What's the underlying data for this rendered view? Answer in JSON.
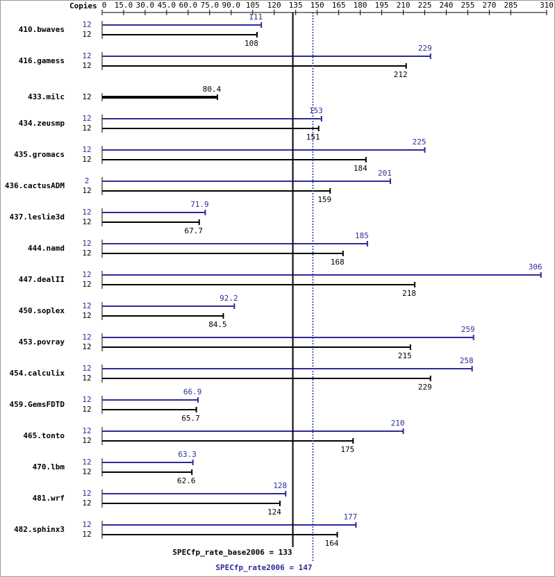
{
  "chart_data": {
    "type": "bar",
    "orientation": "horizontal",
    "copies_header": "Copies",
    "categories": [
      "410.bwaves",
      "416.gamess",
      "433.milc",
      "434.zeusmp",
      "435.gromacs",
      "436.cactusADM",
      "437.leslie3d",
      "444.namd",
      "447.dealII",
      "450.soplex",
      "453.povray",
      "454.calculix",
      "459.GemsFDTD",
      "465.tonto",
      "470.lbm",
      "481.wrf",
      "482.sphinx3"
    ],
    "series": [
      {
        "color": "#2b2b99",
        "copies": [
          12,
          12,
          null,
          12,
          12,
          2,
          12,
          12,
          12,
          12,
          12,
          12,
          12,
          12,
          12,
          12,
          12
        ],
        "values": [
          111,
          229,
          null,
          153,
          225,
          201,
          71.9,
          185,
          306,
          92.2,
          259,
          258,
          66.9,
          210,
          63.3,
          128,
          177
        ]
      },
      {
        "color": "#000000",
        "copies": [
          12,
          12,
          12,
          12,
          12,
          12,
          12,
          12,
          12,
          12,
          12,
          12,
          12,
          12,
          12,
          12,
          12
        ],
        "values": [
          108,
          212,
          80.4,
          151,
          184,
          159,
          67.7,
          168,
          218,
          84.5,
          215,
          229,
          65.7,
          175,
          62.6,
          124,
          164
        ]
      }
    ],
    "reference_lines": [
      {
        "label": "SPECfp_rate_base2006 = 133",
        "value": 133,
        "color": "#000000",
        "style": "solid"
      },
      {
        "label": "SPECfp_rate2006 = 147",
        "value": 147,
        "color": "#2b2b99",
        "style": "dotted"
      }
    ],
    "xlim": [
      0,
      310
    ],
    "xticks": [
      0,
      {
        "value": 15,
        "label": "15.0"
      },
      {
        "value": 30,
        "label": "30.0"
      },
      {
        "value": 45,
        "label": "45.0"
      },
      {
        "value": 60,
        "label": "60.0"
      },
      {
        "value": 75,
        "label": "75.0"
      },
      {
        "value": 90,
        "label": "90.0"
      },
      105,
      120,
      135,
      150,
      165,
      180,
      195,
      210,
      225,
      240,
      255,
      270,
      285,
      310
    ]
  }
}
